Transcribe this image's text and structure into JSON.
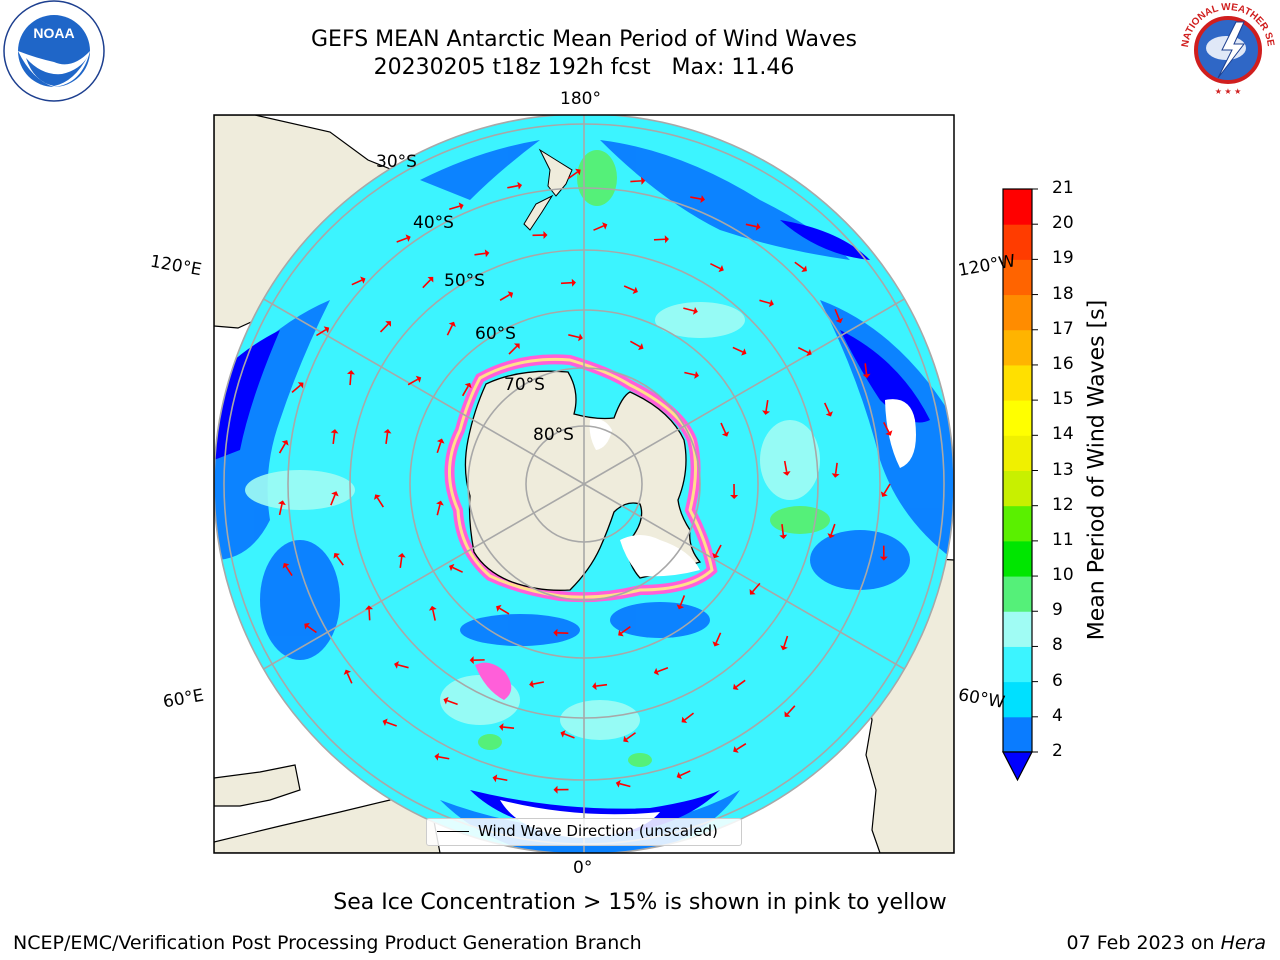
{
  "title": {
    "line1": "GEFS MEAN Antarctic Mean Period of Wind Waves",
    "line2": "20230205 t18z 192h fcst   Max: 11.46"
  },
  "colorbar": {
    "label": "Mean Period of Wind Waves [s]",
    "ticks": [
      "2",
      "4",
      "6",
      "8",
      "9",
      "10",
      "11",
      "12",
      "13",
      "14",
      "15",
      "16",
      "17",
      "18",
      "19",
      "20",
      "21"
    ],
    "colors": [
      "#0a7cff",
      "#00e0ff",
      "#3cf4ff",
      "#a0fcf4",
      "#55f079",
      "#00e600",
      "#5af000",
      "#c8f000",
      "#f0f000",
      "#ffff00",
      "#ffe000",
      "#ffb400",
      "#ff8c00",
      "#ff6400",
      "#ff3c00",
      "#ff0000"
    ],
    "under_color": "#0000ff"
  },
  "map": {
    "lon_labels": {
      "top": "180°",
      "bottom": "0°",
      "left_upper": "120°E",
      "left_lower": "60°E",
      "right_upper": "120°W",
      "right_lower": "60°W"
    },
    "lat_labels": [
      "30°S",
      "40°S",
      "50°S",
      "60°S",
      "70°S",
      "80°S"
    ],
    "ocean_color": "#3cf4ff",
    "land_color": "#efecdc",
    "ice_colors": [
      "#ff5fd9",
      "#ff9fe8",
      "#ffe08a"
    ]
  },
  "legend": {
    "label": "Wind Wave Direction (unscaled)"
  },
  "footer": {
    "sea_ice_note": "Sea Ice Concentration > 15% is shown in pink to yellow",
    "credit": "NCEP/EMC/Verification Post Processing Product Generation Branch",
    "date": "07 Feb 2023 on",
    "machine": "Hera"
  },
  "logos": {
    "noaa_text": "NOAA",
    "nws_text": "NATIONAL WEATHER SERVICE"
  }
}
